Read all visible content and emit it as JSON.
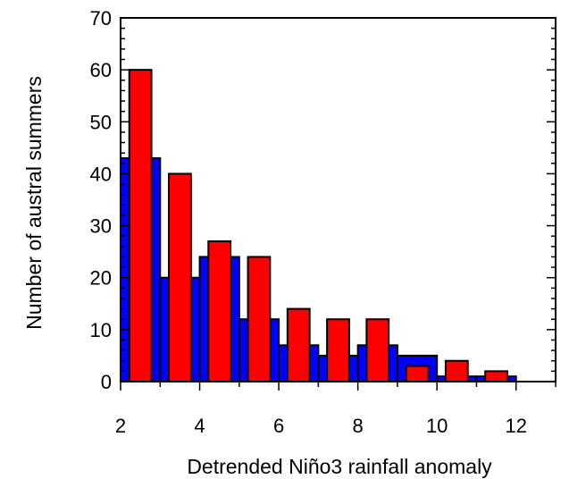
{
  "chart_data": {
    "type": "bar",
    "xlabel": "Detrended Niño3 rainfall anomaly",
    "ylabel": "Number of austral summers",
    "xlim": [
      2,
      13
    ],
    "ylim": [
      0,
      70
    ],
    "xticks": [
      2,
      4,
      6,
      8,
      10,
      12
    ],
    "yticks": [
      0,
      10,
      20,
      30,
      40,
      50,
      60,
      70
    ],
    "bin_width": 1,
    "bin_centers": [
      2.5,
      3.5,
      4.5,
      5.5,
      6.5,
      7.5,
      8.5,
      9.5,
      10.5,
      11.5
    ],
    "series": [
      {
        "color": "#0000ff",
        "values": [
          43,
          20,
          24,
          12,
          7,
          5,
          7,
          5,
          1,
          1
        ]
      },
      {
        "color": "#ff0000",
        "values": [
          60,
          40,
          27,
          24,
          14,
          12,
          12,
          3,
          4,
          2
        ]
      }
    ],
    "grid": false,
    "legend": "none"
  }
}
